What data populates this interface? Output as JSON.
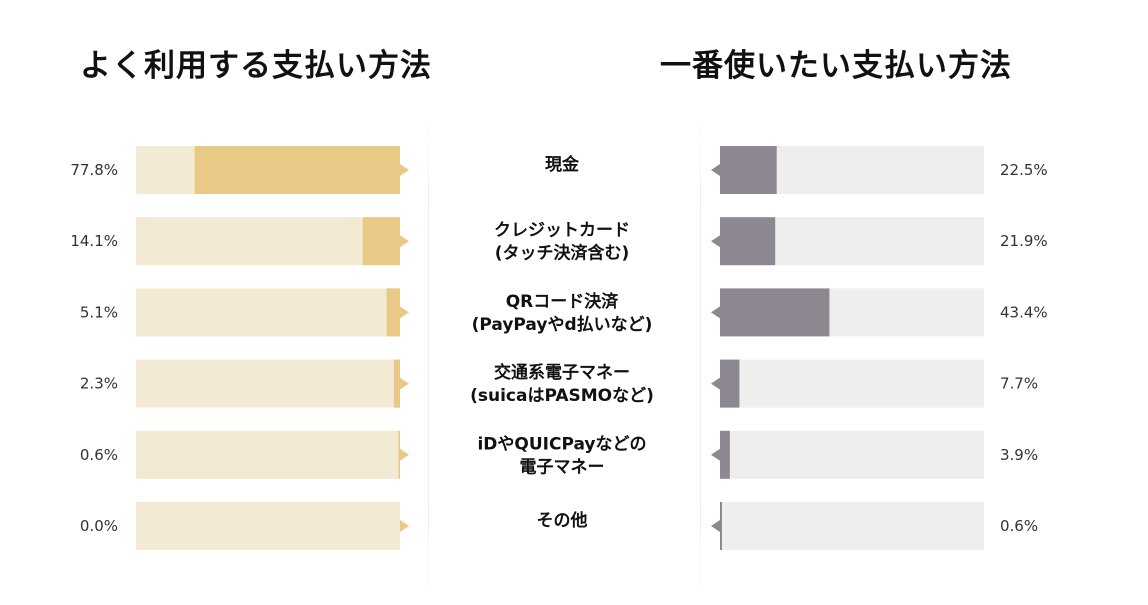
{
  "chart_data": [
    {
      "type": "bar",
      "orientation": "horizontal",
      "title": "よく利用する支払い方法",
      "categories": [
        "現金",
        "クレジットカード\n(タッチ決済含む)",
        "QRコード決済\n(PayPayやd払いなど)",
        "交通系電子マネー\n(suicaはPASMOなど)",
        "iDやQUICPayなどの\n電子マネー",
        "その他"
      ],
      "values": [
        77.8,
        14.1,
        5.1,
        2.3,
        0.6,
        0.0
      ],
      "value_labels": [
        "77.8%",
        "14.1%",
        "5.1%",
        "2.3%",
        "0.6%",
        "0.0%"
      ],
      "direction": "right-to-left",
      "bar_color": "#E9C986",
      "track_color": "#F3EAD3",
      "xlim": [
        0,
        100
      ]
    },
    {
      "type": "bar",
      "orientation": "horizontal",
      "title": "一番使いたい支払い方法",
      "categories": [
        "現金",
        "クレジットカード\n(タッチ決済含む)",
        "QRコード決済\n(PayPayやd払いなど)",
        "交通系電子マネー\n(suicaはPASMOなど)",
        "iDやQUICPayなどの\n電子マネー",
        "その他"
      ],
      "values": [
        22.5,
        21.9,
        43.4,
        7.7,
        3.9,
        0.6
      ],
      "value_labels": [
        "22.5%",
        "21.9%",
        "43.4%",
        "7.7%",
        "3.9%",
        "0.6%"
      ],
      "direction": "left-to-right",
      "bar_color": "#8D8792",
      "track_color": "#EEEEEE",
      "xlim": [
        0,
        100
      ]
    }
  ]
}
